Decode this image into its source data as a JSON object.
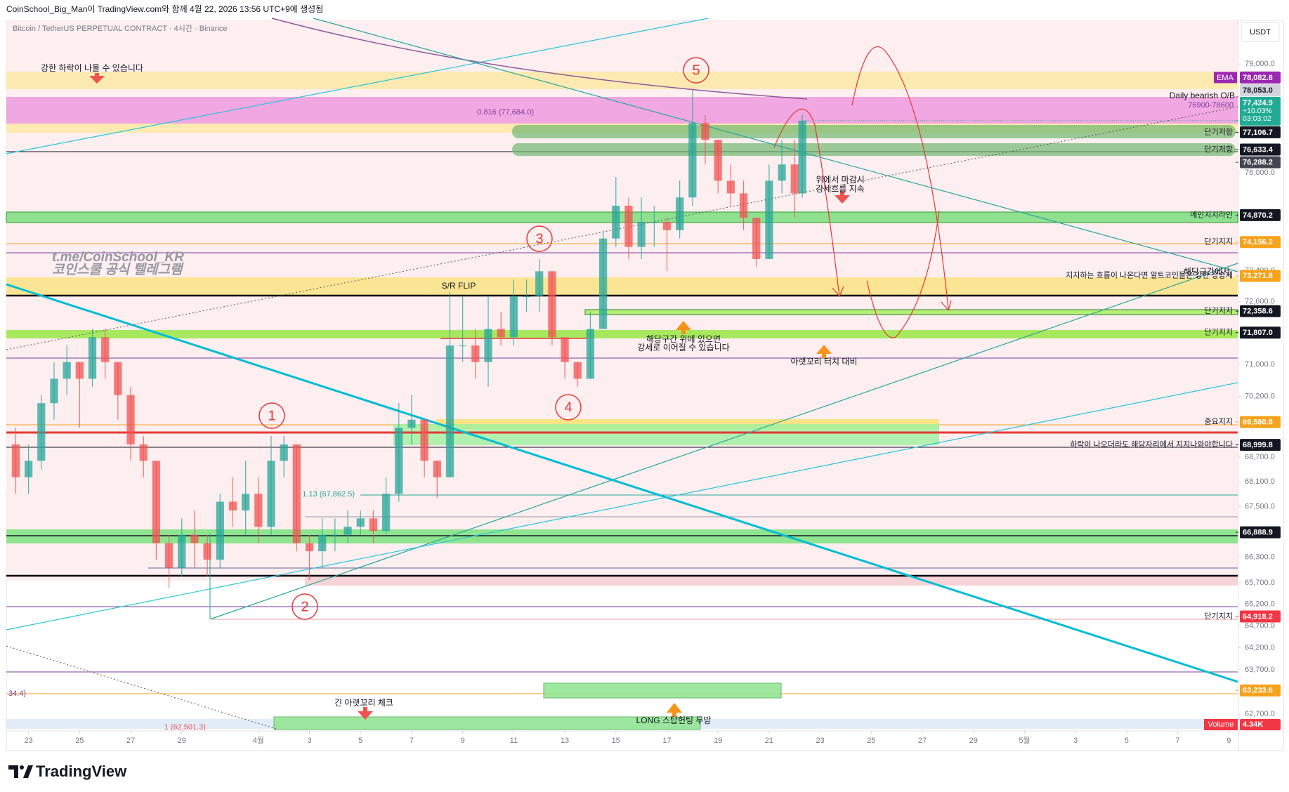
{
  "chart_data": {
    "type": "candlestick",
    "header": "CoinSchool_Big_Man이 TradingView.com와 함께 4월 22, 2026 13:56 UTC+9에 생성됨",
    "title": "Bitcoin / TetherUS PERPETUAL CONTRACT · 4시간 · Binance",
    "currency": "USDT",
    "brand": "TradingView",
    "watermark": [
      "t.me/CoinSchool_KR",
      "코인스쿨 공식 텔레그램"
    ],
    "log_scale": true,
    "grid": false,
    "up_color": "#26a69a",
    "down_color": "#ef5350",
    "x": [
      -0.5,
      0,
      0.5,
      1,
      1.5,
      2,
      2.5,
      3,
      3.5,
      4,
      4.5,
      5,
      5.5,
      6,
      6.5,
      7,
      7.5,
      8,
      8.5,
      9,
      9.5,
      10,
      10.5,
      11,
      11.5,
      12,
      12.5,
      13,
      13.5,
      14,
      14.5,
      15,
      15.5,
      16,
      16.5,
      17,
      17.5,
      18,
      18.5,
      19,
      19.5,
      20,
      20.5,
      21,
      21.5,
      22,
      22.5,
      23,
      23.5,
      24,
      24.5,
      25,
      25.5,
      26,
      26.5,
      27,
      27.5,
      28,
      28.5,
      29,
      29.5,
      30,
      30.3
    ],
    "open": [
      69010,
      68210,
      68610,
      70030,
      70640,
      71060,
      70640,
      71690,
      71060,
      70230,
      69010,
      68610,
      66630,
      66050,
      66830,
      66630,
      66240,
      67620,
      67410,
      67810,
      67020,
      68610,
      69010,
      66630,
      66440,
      66830,
      66830,
      67020,
      67220,
      66920,
      67810,
      69420,
      69620,
      68610,
      68210,
      71480,
      71480,
      71060,
      71900,
      71690,
      72740,
      72740,
      73390,
      71690,
      71060,
      70640,
      71900,
      74250,
      75120,
      74030,
      74690,
      74690,
      74470,
      75340,
      77360,
      76900,
      75790,
      75450,
      74800,
      73710,
      75790,
      76230,
      75450
    ],
    "high": [
      69420,
      69010,
      70230,
      71060,
      71480,
      71060,
      71900,
      71900,
      71060,
      70440,
      69220,
      68610,
      66830,
      67220,
      67410,
      66830,
      67810,
      68210,
      68610,
      68210,
      69220,
      69220,
      69010,
      66830,
      67220,
      67220,
      67410,
      67410,
      67410,
      68210,
      70030,
      70230,
      69620,
      68610,
      72850,
      72740,
      71900,
      72740,
      72340,
      73170,
      73170,
      73710,
      73390,
      71690,
      71060,
      72340,
      74470,
      75890,
      75340,
      75340,
      75120,
      74800,
      75790,
      78270,
      77580,
      76900,
      76230,
      75790,
      74800,
      76230,
      76900,
      76900,
      77580
    ],
    "low": [
      67810,
      67810,
      68400,
      69620,
      70230,
      69420,
      70440,
      70640,
      69620,
      68610,
      68210,
      66240,
      65570,
      65850,
      66050,
      65850,
      66050,
      67020,
      66830,
      66630,
      66830,
      68210,
      66440,
      65760,
      66050,
      66440,
      66630,
      66830,
      66630,
      66830,
      67620,
      69010,
      68210,
      67710,
      68210,
      71060,
      70640,
      70440,
      71480,
      71480,
      72340,
      72340,
      71480,
      70640,
      70440,
      70640,
      71900,
      74030,
      73710,
      73710,
      74030,
      73390,
      74250,
      75120,
      76230,
      75450,
      75120,
      74470,
      73500,
      73710,
      75450,
      74800,
      75340
    ],
    "close": [
      68210,
      68610,
      70030,
      70640,
      71060,
      70640,
      71690,
      71060,
      70230,
      69010,
      68610,
      66630,
      66050,
      66830,
      66630,
      66240,
      67620,
      67410,
      67810,
      67020,
      68610,
      69010,
      66630,
      66440,
      66830,
      66830,
      67020,
      67220,
      66920,
      67810,
      69420,
      69620,
      68610,
      68210,
      71480,
      71480,
      71060,
      71900,
      71690,
      72740,
      72740,
      73390,
      71690,
      71060,
      70640,
      71900,
      74250,
      75120,
      74030,
      74690,
      74690,
      74470,
      75340,
      77360,
      76900,
      75790,
      75450,
      74800,
      73710,
      75790,
      76230,
      75450,
      77424.9
    ],
    "xlim": [
      -0.87,
      47.35
    ],
    "xticks": [
      {
        "value": 0,
        "label": "23"
      },
      {
        "value": 2,
        "label": "25"
      },
      {
        "value": 4,
        "label": "27"
      },
      {
        "value": 6,
        "label": "29"
      },
      {
        "value": 9,
        "label": "4월"
      },
      {
        "value": 11,
        "label": "3"
      },
      {
        "value": 13,
        "label": "5"
      },
      {
        "value": 15,
        "label": "7"
      },
      {
        "value": 17,
        "label": "9"
      },
      {
        "value": 19,
        "label": "11"
      },
      {
        "value": 21,
        "label": "13"
      },
      {
        "value": 23,
        "label": "15"
      },
      {
        "value": 25,
        "label": "17"
      },
      {
        "value": 27,
        "label": "19"
      },
      {
        "value": 29,
        "label": "21"
      },
      {
        "value": 31,
        "label": "23"
      },
      {
        "value": 33,
        "label": "25"
      },
      {
        "value": 35,
        "label": "27"
      },
      {
        "value": 37,
        "label": "29"
      },
      {
        "value": 39,
        "label": "5월"
      },
      {
        "value": 41,
        "label": "3"
      },
      {
        "value": 43,
        "label": "5"
      },
      {
        "value": 45,
        "label": "7"
      },
      {
        "value": 47,
        "label": "9"
      }
    ],
    "ylim": [
      62330,
      80235
    ],
    "yticks": [
      {
        "value": 79000,
        "label": "79,000.0"
      },
      {
        "value": 76000,
        "label": "76,000.0"
      },
      {
        "value": 73400,
        "label": "73,400.0"
      },
      {
        "value": 72600,
        "label": "72,600.0"
      },
      {
        "value": 71000,
        "label": "71,000.0"
      },
      {
        "value": 70200,
        "label": "70,200.0"
      },
      {
        "value": 68700,
        "label": "68,700.0"
      },
      {
        "value": 68100,
        "label": "68,100.0"
      },
      {
        "value": 67500,
        "label": "67,500.0"
      },
      {
        "value": 66300,
        "label": "66,300.0"
      },
      {
        "value": 65700,
        "label": "65,700.0"
      },
      {
        "value": 65200,
        "label": "65,200.0"
      },
      {
        "value": 64700,
        "label": "64,700.0"
      },
      {
        "value": 64200,
        "label": "64,200.0"
      },
      {
        "value": 63700,
        "label": "63,700.0"
      },
      {
        "value": 62700,
        "label": "62,700.0"
      }
    ],
    "ema": {
      "name": "EMA",
      "value": 78082.8,
      "label": "78,082.8",
      "color": "#9c27b0"
    },
    "last_price": {
      "value": 77424.9,
      "label": "77,424.9",
      "change": "+10.03%",
      "countdown": "03:03:02",
      "color": "#22ab94"
    },
    "levels": [
      {
        "value": 78053.0,
        "label": "78,053.0",
        "color": "#d1d4dc",
        "text_color": "#131722"
      },
      {
        "value": 77106.7,
        "label": "77,106.7",
        "color": "#131722",
        "text": "단기저항"
      },
      {
        "value": 76633.4,
        "label": "76,633.4",
        "color": "#131722",
        "text": "단기저항"
      },
      {
        "value": 76288.2,
        "label": "76,288.2",
        "color": "#434651"
      },
      {
        "value": 74870.2,
        "label": "74,870.2",
        "color": "#131722",
        "text": "메인지지라인"
      },
      {
        "value": 74156.2,
        "label": "74,156.2",
        "color": "#f7a21b",
        "text": "단기지지"
      },
      {
        "value": 73271.8,
        "label": "73,271.8",
        "color": "#f7a21b",
        "text": "지지하는 흐름이 나온다면 알트코인들은 강한 상승세"
      },
      {
        "value": 72358.6,
        "label": "72,358.6",
        "color": "#131722",
        "text": "단기지지"
      },
      {
        "value": 71807.0,
        "label": "71,807.0",
        "color": "#131722",
        "text": "단기지지"
      },
      {
        "value": 69560.8,
        "label": "69,560.8",
        "color": "#f7a21b",
        "text": "중요지지"
      },
      {
        "value": 68999.8,
        "label": "68,999.8",
        "color": "#131722",
        "text": "하락이 나오더라도 해당자리에서 지지나와야합니다"
      },
      {
        "value": 66888.9,
        "label": "66,888.9",
        "color": "#131722"
      },
      {
        "value": 64918.2,
        "label": "64,918.2",
        "color": "#f23645",
        "text": "단기지지"
      },
      {
        "value": 63233.6,
        "label": "63,233.6",
        "color": "#f7a21b"
      }
    ],
    "volume": {
      "name": "Volume",
      "label": "4.34K",
      "color": "#f23645"
    },
    "wave_labels": [
      "1",
      "2",
      "3",
      "4",
      "5"
    ],
    "fib_labels": [
      "0.816 (77,684.0)",
      "1.13 (67,862.5)",
      "1 (62,501.3)"
    ],
    "annotations": [
      "강한 하락이 나올 수 있습니다",
      "Daily bearish O/B",
      "76900-78600",
      "위에서 마감시",
      "강세흐름 지속",
      "해당구간에서",
      "S/R FLIP",
      "해당구간 위에 있으면",
      "강세로 이어질 수 있습니다",
      "아랫꼬리 터치 대비",
      "긴 아랫꼬리 체크",
      "LONG 스탑헌팅 무방",
      "34.4)"
    ]
  }
}
